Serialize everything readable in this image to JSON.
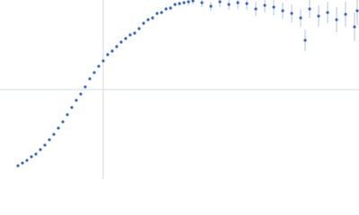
{
  "chart_data": {
    "type": "scatter",
    "color": "#3a68bd",
    "error_color": "#9db6e2",
    "grid": true,
    "xlim": [
      0,
      4
    ],
    "ylim": [
      0,
      2
    ],
    "xticks": [
      1.15
    ],
    "yticks": [
      1
    ],
    "series": [
      {
        "x": [
          0.2,
          0.25,
          0.3,
          0.35,
          0.4,
          0.45,
          0.5,
          0.55,
          0.6,
          0.65,
          0.7,
          0.75,
          0.8,
          0.85,
          0.9,
          0.95,
          1.0,
          1.05,
          1.1,
          1.15,
          1.2,
          1.25,
          1.3,
          1.35,
          1.4,
          1.45,
          1.5,
          1.55,
          1.6,
          1.65,
          1.7,
          1.75,
          1.8,
          1.85,
          1.9,
          1.95,
          2.0,
          2.05,
          2.1,
          2.15,
          2.25,
          2.35,
          2.45,
          2.55,
          2.65,
          2.75,
          2.85,
          2.95,
          3.05,
          3.15,
          3.25,
          3.35,
          3.4,
          3.45,
          3.55,
          3.65,
          3.75,
          3.85,
          3.95,
          3.98
        ],
        "values": [
          0.15,
          0.18,
          0.21,
          0.25,
          0.28,
          0.33,
          0.38,
          0.44,
          0.5,
          0.57,
          0.64,
          0.72,
          0.8,
          0.88,
          0.95,
          1.03,
          1.12,
          1.19,
          1.26,
          1.32,
          1.39,
          1.43,
          1.48,
          1.53,
          1.57,
          1.61,
          1.63,
          1.68,
          1.74,
          1.78,
          1.8,
          1.85,
          1.86,
          1.9,
          1.91,
          1.95,
          1.96,
          1.97,
          1.98,
          1.99,
          1.97,
          1.93,
          1.98,
          1.95,
          1.97,
          1.96,
          1.9,
          1.94,
          1.92,
          1.88,
          1.85,
          1.8,
          1.55,
          1.9,
          1.82,
          1.86,
          1.78,
          1.84,
          1.7,
          1.88
        ],
        "errors": [
          0.01,
          0.01,
          0.01,
          0.01,
          0.01,
          0.01,
          0.01,
          0.01,
          0.01,
          0.01,
          0.01,
          0.01,
          0.01,
          0.01,
          0.01,
          0.01,
          0.01,
          0.01,
          0.01,
          0.01,
          0.02,
          0.02,
          0.02,
          0.02,
          0.02,
          0.02,
          0.02,
          0.02,
          0.02,
          0.02,
          0.02,
          0.02,
          0.02,
          0.02,
          0.02,
          0.02,
          0.02,
          0.02,
          0.04,
          0.04,
          0.05,
          0.05,
          0.06,
          0.06,
          0.07,
          0.07,
          0.08,
          0.08,
          0.09,
          0.09,
          0.1,
          0.1,
          0.12,
          0.1,
          0.12,
          0.12,
          0.14,
          0.14,
          0.16,
          0.16
        ]
      }
    ]
  }
}
